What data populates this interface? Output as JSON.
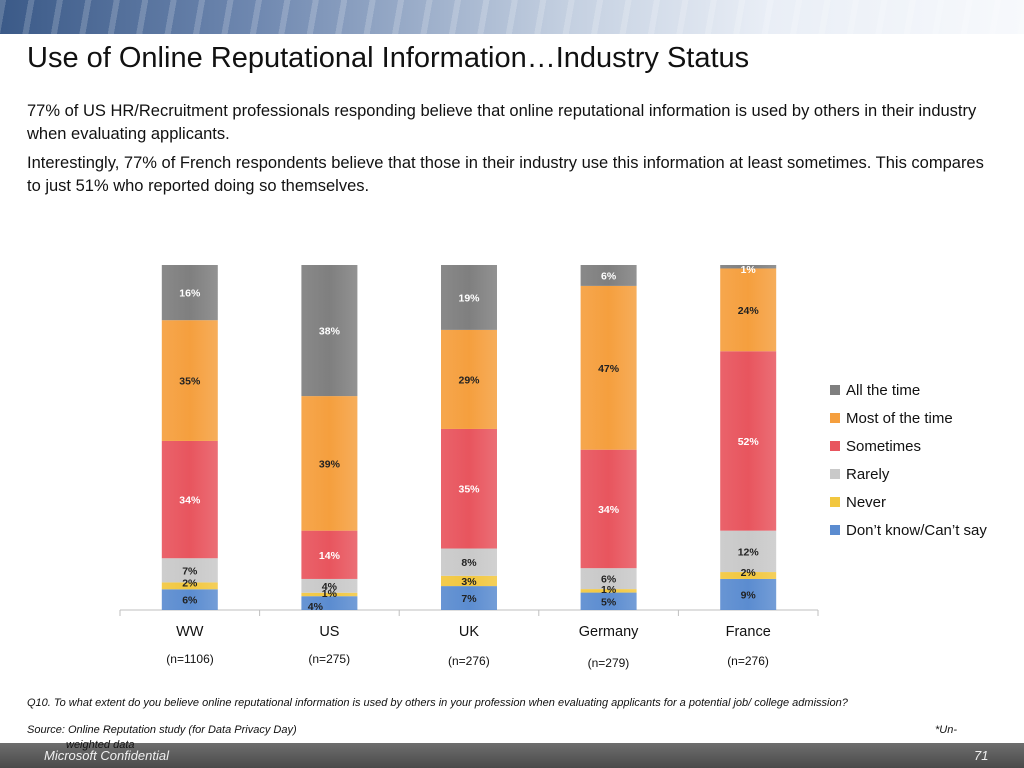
{
  "title": "Use of Online Reputational Information…Industry Status",
  "paragraphs": [
    "77% of US HR/Recruitment professionals responding believe that online reputational information is used by others in their industry when evaluating applicants.",
    "Interestingly, 77% of French respondents believe that those in their industry use this information at least sometimes. This compares to just 51% who reported doing so themselves."
  ],
  "chart_data": {
    "type": "bar",
    "stacked": true,
    "normalized": true,
    "categories": [
      "WW",
      "US",
      "UK",
      "Germany",
      "France"
    ],
    "sample_sizes": [
      "(n=1106)",
      "(n=275)",
      "(n=276)",
      "(n=279)",
      "(n=276)"
    ],
    "series": [
      {
        "name": "Don’t know/Can’t say",
        "values": [
          6,
          4,
          7,
          5,
          9
        ],
        "labels": [
          "6%",
          "4%",
          "7%",
          "5%",
          "9%"
        ]
      },
      {
        "name": "Never",
        "values": [
          2,
          1,
          3,
          1,
          2
        ],
        "labels": [
          "2%",
          "1%",
          "3%",
          "1%",
          "2%"
        ]
      },
      {
        "name": "Rarely",
        "values": [
          7,
          4,
          8,
          6,
          12
        ],
        "labels": [
          "7%",
          "4%",
          "8%",
          "6%",
          "12%"
        ]
      },
      {
        "name": "Sometimes",
        "values": [
          34,
          14,
          35,
          34,
          52
        ],
        "labels": [
          "34%",
          "14%",
          "35%",
          "34%",
          "52%"
        ]
      },
      {
        "name": "Most of the time",
        "values": [
          35,
          39,
          29,
          47,
          24
        ],
        "labels": [
          "35%",
          "39%",
          "29%",
          "47%",
          "24%"
        ]
      },
      {
        "name": "All the time",
        "values": [
          16,
          38,
          19,
          6,
          1
        ],
        "labels": [
          "16%",
          "38%",
          "19%",
          "6%",
          "1%"
        ]
      }
    ],
    "colors": [
      "#5b8cd0",
      "#f2c73f",
      "#c9c9c9",
      "#e8555e",
      "#f59f3e",
      "#7f7f7f"
    ],
    "legend_position": "right",
    "legend_order": [
      "All the time",
      "Most of the time",
      "Sometimes",
      "Rarely",
      "Never",
      "Don’t know/Can’t say"
    ],
    "grid": false
  },
  "footnote": "Q10. To what extent do you believe online reputational information is used by others in your profession when evaluating applicants for a potential job/ college admission?",
  "source": "Source: Online Reputation study (for Data Privacy Day)",
  "unweighted_part1": "*Un-",
  "unweighted_part2": "weighted data",
  "footer": {
    "confidential": "Microsoft Confidential",
    "page": "71"
  }
}
